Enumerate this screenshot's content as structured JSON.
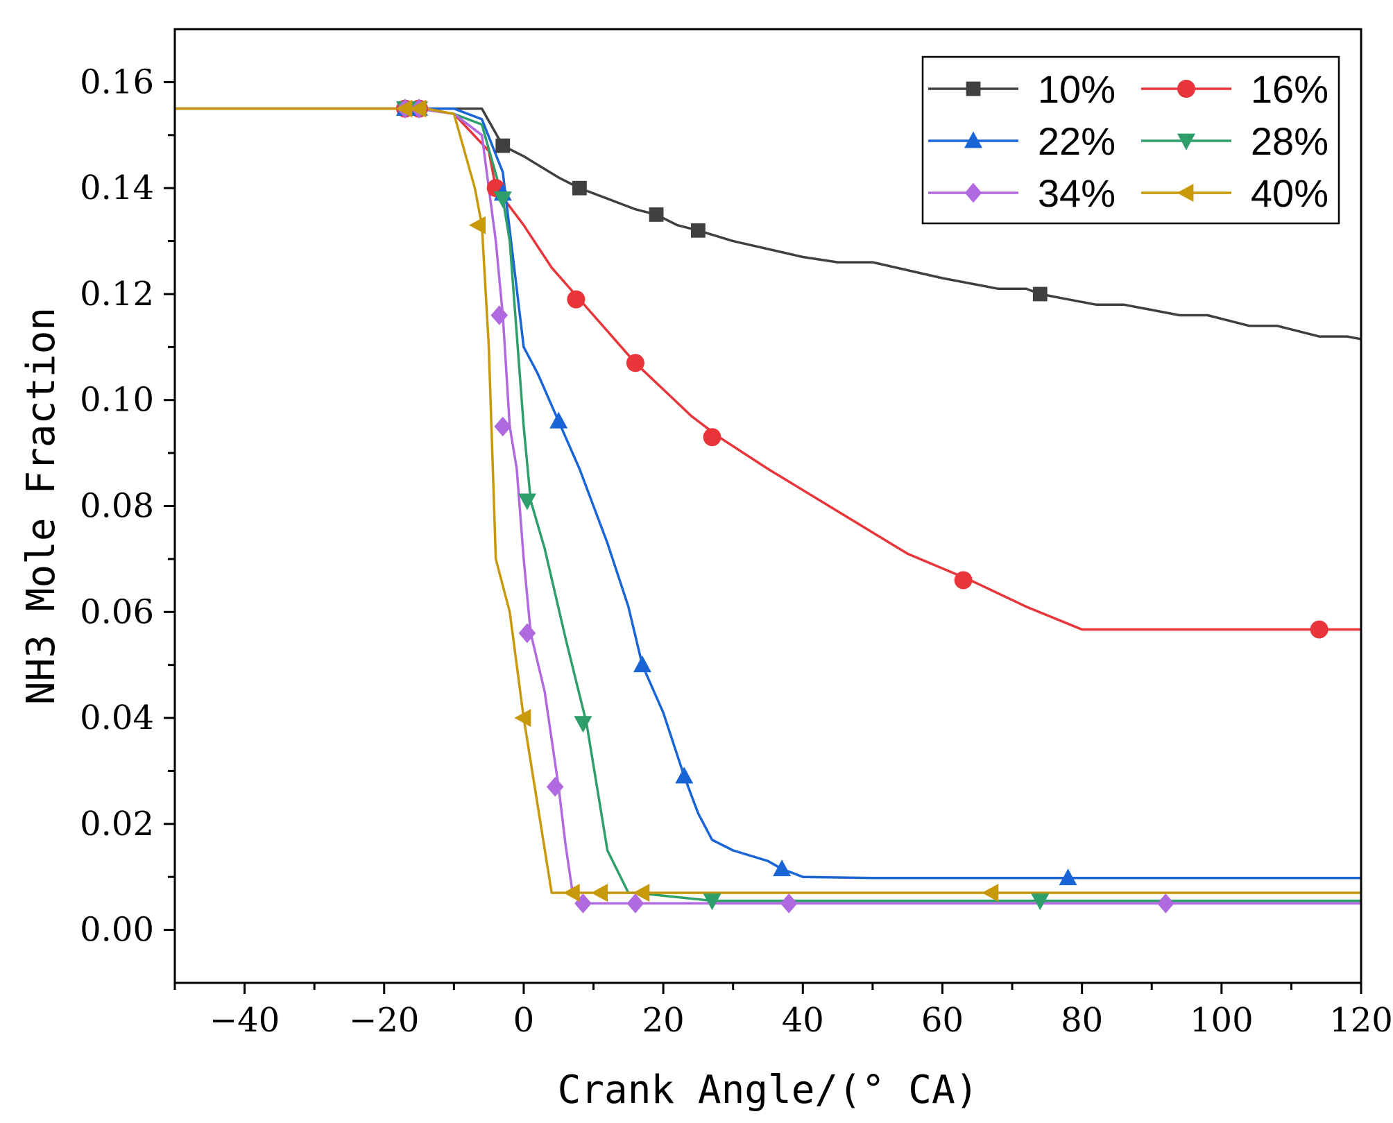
{
  "chart_data": {
    "type": "line",
    "title": "",
    "xlabel": "Crank Angle/(° CA)",
    "ylabel": "NH3 Mole Fraction",
    "xlim": [
      -50,
      120
    ],
    "ylim": [
      -0.01,
      0.17
    ],
    "x_ticks": [
      -40,
      -20,
      0,
      20,
      40,
      60,
      80,
      100,
      120
    ],
    "x_tick_labels": [
      "−40",
      "−20",
      "0",
      "20",
      "40",
      "60",
      "80",
      "100",
      "120"
    ],
    "y_ticks": [
      0.0,
      0.02,
      0.04,
      0.06,
      0.08,
      0.1,
      0.12,
      0.14,
      0.16
    ],
    "y_tick_labels": [
      "0.00",
      "0.02",
      "0.04",
      "0.06",
      "0.08",
      "0.10",
      "0.12",
      "0.14",
      "0.16"
    ],
    "grid": false,
    "legend_position": "top-right",
    "series": [
      {
        "name": "10%",
        "color": "#404040",
        "marker": "square",
        "points": [
          [
            -50,
            0.155
          ],
          [
            -17,
            0.155
          ],
          [
            -15,
            0.155
          ],
          [
            -6,
            0.155
          ],
          [
            -3,
            0.148
          ],
          [
            0,
            0.146
          ],
          [
            5,
            0.142
          ],
          [
            8,
            0.14
          ],
          [
            12,
            0.138
          ],
          [
            16,
            0.136
          ],
          [
            19,
            0.135
          ],
          [
            22,
            0.133
          ],
          [
            25,
            0.132
          ],
          [
            30,
            0.13
          ],
          [
            40,
            0.127
          ],
          [
            45,
            0.126
          ],
          [
            50,
            0.126
          ],
          [
            60,
            0.123
          ],
          [
            68,
            0.121
          ],
          [
            72,
            0.121
          ],
          [
            74,
            0.12
          ],
          [
            82,
            0.118
          ],
          [
            86,
            0.118
          ],
          [
            94,
            0.116
          ],
          [
            98,
            0.116
          ],
          [
            104,
            0.114
          ],
          [
            108,
            0.114
          ],
          [
            114,
            0.112
          ],
          [
            118,
            0.112
          ],
          [
            120,
            0.1115
          ]
        ],
        "markers": [
          [
            -17,
            0.155
          ],
          [
            -15,
            0.155
          ],
          [
            -3,
            0.148
          ],
          [
            8,
            0.14
          ],
          [
            19,
            0.135
          ],
          [
            25,
            0.132
          ],
          [
            74,
            0.12
          ]
        ]
      },
      {
        "name": "16%",
        "color": "#e8353a",
        "marker": "circle",
        "points": [
          [
            -50,
            0.155
          ],
          [
            -17,
            0.155
          ],
          [
            -15,
            0.155
          ],
          [
            -10,
            0.154
          ],
          [
            -5,
            0.147
          ],
          [
            -4,
            0.14
          ],
          [
            0,
            0.133
          ],
          [
            4,
            0.125
          ],
          [
            8,
            0.119
          ],
          [
            12,
            0.113
          ],
          [
            16,
            0.107
          ],
          [
            20,
            0.102
          ],
          [
            24,
            0.097
          ],
          [
            28,
            0.093
          ],
          [
            35,
            0.087
          ],
          [
            45,
            0.079
          ],
          [
            55,
            0.071
          ],
          [
            64,
            0.066
          ],
          [
            72,
            0.061
          ],
          [
            80,
            0.0567
          ],
          [
            90,
            0.0567
          ],
          [
            114,
            0.0567
          ],
          [
            120,
            0.0567
          ]
        ],
        "markers": [
          [
            -17,
            0.155
          ],
          [
            -15,
            0.155
          ],
          [
            -4,
            0.14
          ],
          [
            7.5,
            0.119
          ],
          [
            16,
            0.107
          ],
          [
            27,
            0.093
          ],
          [
            63,
            0.066
          ],
          [
            114,
            0.0567
          ]
        ]
      },
      {
        "name": "22%",
        "color": "#1a65d6",
        "marker": "triangle-up",
        "points": [
          [
            -50,
            0.155
          ],
          [
            -17,
            0.155
          ],
          [
            -15,
            0.155
          ],
          [
            -10,
            0.155
          ],
          [
            -6,
            0.153
          ],
          [
            -3,
            0.143
          ],
          [
            0,
            0.11
          ],
          [
            2,
            0.105
          ],
          [
            5,
            0.096
          ],
          [
            8,
            0.087
          ],
          [
            12,
            0.073
          ],
          [
            15,
            0.061
          ],
          [
            17,
            0.05
          ],
          [
            20,
            0.041
          ],
          [
            23,
            0.029
          ],
          [
            25,
            0.022
          ],
          [
            27,
            0.017
          ],
          [
            30,
            0.015
          ],
          [
            35,
            0.013
          ],
          [
            37,
            0.0115
          ],
          [
            40,
            0.01
          ],
          [
            50,
            0.0098
          ],
          [
            78,
            0.0098
          ],
          [
            120,
            0.0098
          ]
        ],
        "markers": [
          [
            -17,
            0.155
          ],
          [
            -15,
            0.155
          ],
          [
            -3,
            0.139
          ],
          [
            5,
            0.096
          ],
          [
            17,
            0.05
          ],
          [
            23,
            0.029
          ],
          [
            37,
            0.0115
          ],
          [
            78,
            0.0098
          ]
        ]
      },
      {
        "name": "28%",
        "color": "#2e9e6b",
        "marker": "triangle-down",
        "points": [
          [
            -50,
            0.155
          ],
          [
            -17,
            0.155
          ],
          [
            -15,
            0.155
          ],
          [
            -10,
            0.154
          ],
          [
            -6,
            0.152
          ],
          [
            -3,
            0.138
          ],
          [
            -2,
            0.13
          ],
          [
            0,
            0.095
          ],
          [
            1,
            0.081
          ],
          [
            3,
            0.072
          ],
          [
            6,
            0.055
          ],
          [
            9,
            0.039
          ],
          [
            12,
            0.015
          ],
          [
            15,
            0.007
          ],
          [
            16,
            0.007
          ],
          [
            27,
            0.0055
          ],
          [
            74,
            0.0055
          ],
          [
            120,
            0.0055
          ]
        ],
        "markers": [
          [
            -17,
            0.155
          ],
          [
            -15,
            0.155
          ],
          [
            -3,
            0.138
          ],
          [
            0.5,
            0.081
          ],
          [
            8.5,
            0.039
          ],
          [
            27,
            0.0055
          ],
          [
            74,
            0.0055
          ]
        ]
      },
      {
        "name": "34%",
        "color": "#b069df",
        "marker": "diamond",
        "points": [
          [
            -50,
            0.155
          ],
          [
            -17,
            0.155
          ],
          [
            -15,
            0.155
          ],
          [
            -10,
            0.154
          ],
          [
            -6,
            0.15
          ],
          [
            -4,
            0.13
          ],
          [
            -3,
            0.116
          ],
          [
            -2,
            0.095
          ],
          [
            -1,
            0.087
          ],
          [
            0,
            0.07
          ],
          [
            1,
            0.056
          ],
          [
            3,
            0.045
          ],
          [
            5,
            0.027
          ],
          [
            6,
            0.016
          ],
          [
            7,
            0.007
          ],
          [
            8.5,
            0.005
          ],
          [
            16,
            0.005
          ],
          [
            38,
            0.005
          ],
          [
            92,
            0.005
          ],
          [
            120,
            0.005
          ]
        ],
        "markers": [
          [
            -17,
            0.155
          ],
          [
            -15,
            0.155
          ],
          [
            -3.5,
            0.116
          ],
          [
            -3,
            0.095
          ],
          [
            0.5,
            0.056
          ],
          [
            4.5,
            0.027
          ],
          [
            8.5,
            0.005
          ],
          [
            16,
            0.005
          ],
          [
            38,
            0.005
          ],
          [
            92,
            0.005
          ]
        ]
      },
      {
        "name": "40%",
        "color": "#c9990c",
        "marker": "triangle-left",
        "points": [
          [
            -50,
            0.155
          ],
          [
            -17,
            0.155
          ],
          [
            -14,
            0.155
          ],
          [
            -10,
            0.154
          ],
          [
            -7,
            0.14
          ],
          [
            -6,
            0.133
          ],
          [
            -5,
            0.11
          ],
          [
            -4,
            0.07
          ],
          [
            -2,
            0.06
          ],
          [
            0,
            0.04
          ],
          [
            4,
            0.007
          ],
          [
            8,
            0.007
          ],
          [
            12,
            0.007
          ],
          [
            18,
            0.007
          ],
          [
            67,
            0.007
          ],
          [
            120,
            0.007
          ]
        ],
        "markers": [
          [
            -17,
            0.155
          ],
          [
            -15,
            0.155
          ],
          [
            -6.5,
            0.133
          ],
          [
            0,
            0.04
          ],
          [
            7,
            0.007
          ],
          [
            11,
            0.007
          ],
          [
            17,
            0.007
          ],
          [
            67,
            0.007
          ]
        ]
      }
    ]
  }
}
